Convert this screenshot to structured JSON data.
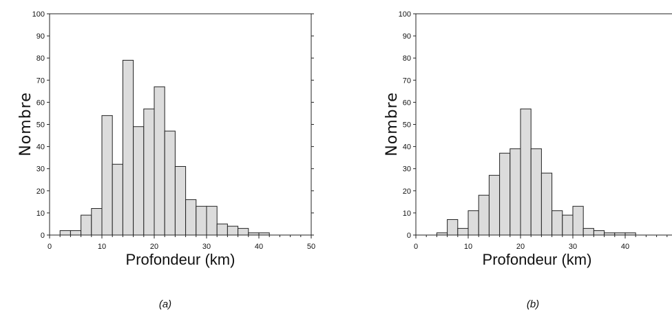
{
  "chart_data": [
    {
      "type": "bar",
      "caption": "(a)",
      "xlabel": "Profondeur (km)",
      "ylabel": "Nombre",
      "xlim": [
        0,
        50
      ],
      "ylim": [
        0,
        100
      ],
      "xticks": [
        "0",
        "10",
        "20",
        "30",
        "40",
        "50"
      ],
      "yticks": [
        "0",
        "10",
        "20",
        "30",
        "40",
        "50",
        "60",
        "70",
        "80",
        "90",
        "100"
      ],
      "bin_width": 2,
      "bin_starts": [
        2,
        4,
        6,
        8,
        10,
        12,
        14,
        16,
        18,
        20,
        22,
        24,
        26,
        28,
        30,
        32,
        34,
        36,
        38,
        40
      ],
      "values": [
        2,
        2,
        9,
        12,
        54,
        32,
        79,
        49,
        57,
        67,
        47,
        31,
        16,
        13,
        13,
        5,
        4,
        3,
        1,
        1
      ],
      "bar_color": "#dcdcdc"
    },
    {
      "type": "bar",
      "caption": "(b)",
      "xlabel": "Profondeur (km)",
      "ylabel": "Nombre",
      "xlim": [
        0,
        50
      ],
      "ylim": [
        0,
        100
      ],
      "xticks": [
        "0",
        "10",
        "20",
        "30",
        "40"
      ],
      "yticks": [
        "0",
        "10",
        "20",
        "30",
        "40",
        "50",
        "60",
        "70",
        "80",
        "90",
        "100"
      ],
      "bin_width": 2,
      "bin_starts": [
        4,
        6,
        8,
        10,
        12,
        14,
        16,
        18,
        20,
        22,
        24,
        26,
        28,
        30,
        32,
        34,
        36,
        38,
        40
      ],
      "values": [
        1,
        7,
        3,
        11,
        18,
        27,
        37,
        39,
        57,
        39,
        28,
        11,
        9,
        13,
        3,
        2,
        1,
        1,
        1
      ],
      "bar_color": "#dcdcdc"
    }
  ]
}
